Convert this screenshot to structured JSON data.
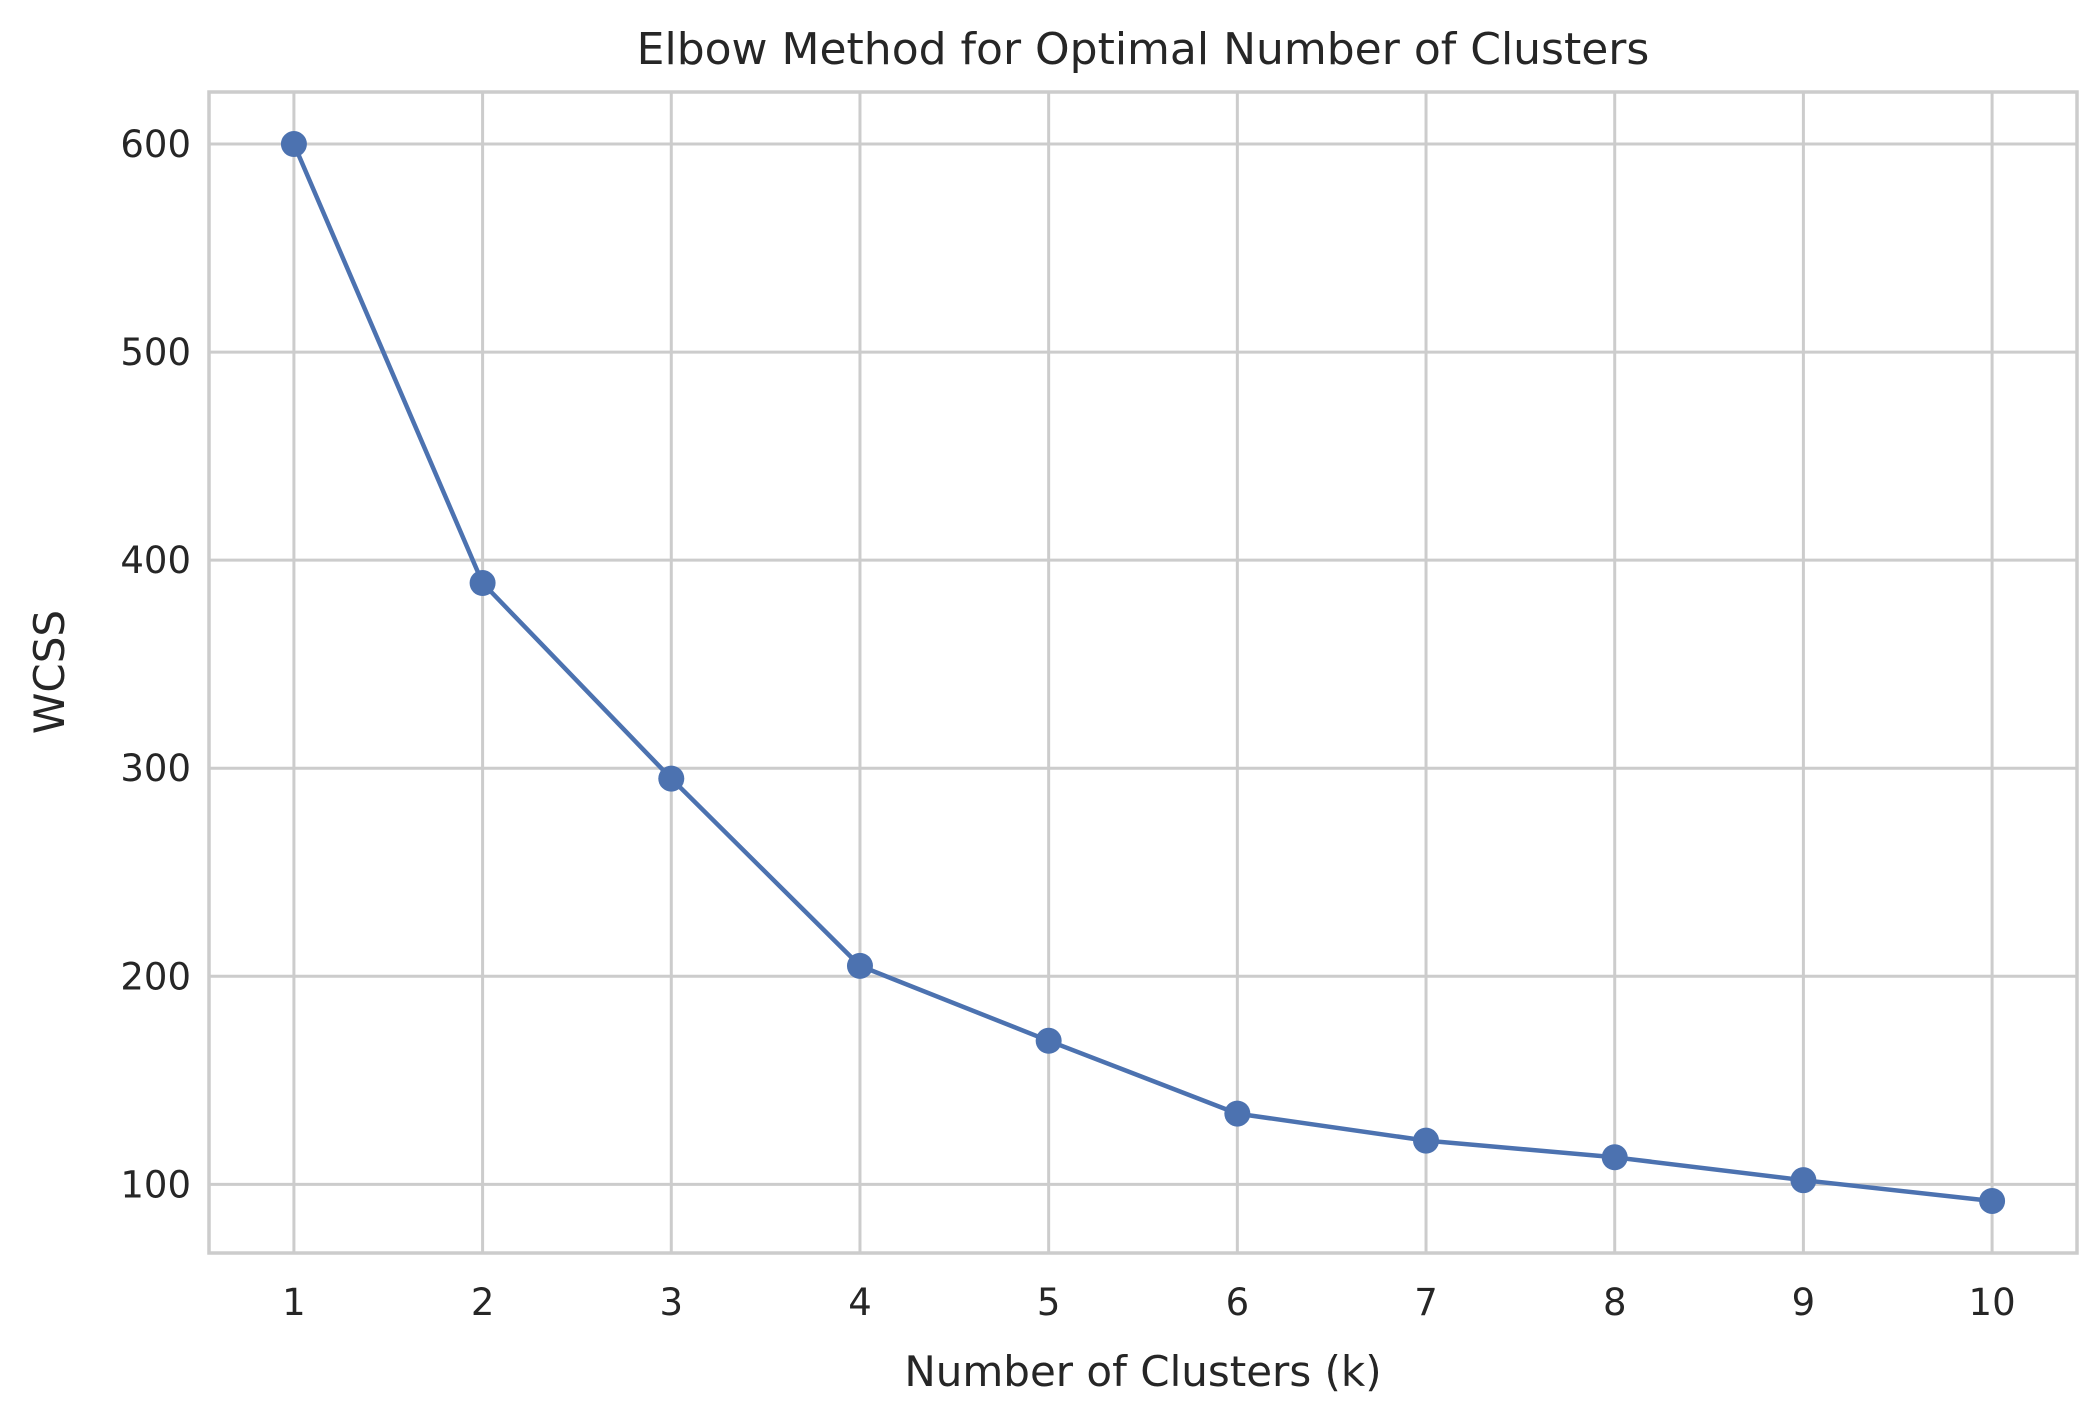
{
  "chart_data": {
    "type": "line",
    "title": "Elbow Method for Optimal Number of Clusters",
    "xlabel": "Number of Clusters (k)",
    "ylabel": "WCSS",
    "x": [
      1,
      2,
      3,
      4,
      5,
      6,
      7,
      8,
      9,
      10
    ],
    "series": [
      {
        "values": [
          600,
          389,
          295,
          205,
          169,
          134,
          121,
          113,
          102,
          92
        ]
      }
    ],
    "xticks": [
      "1",
      "2",
      "3",
      "4",
      "5",
      "6",
      "7",
      "8",
      "9",
      "10"
    ],
    "yticks": [
      "100",
      "200",
      "300",
      "400",
      "500",
      "600"
    ],
    "xlim": [
      0.55,
      10.45
    ],
    "ylim": [
      67,
      625
    ],
    "grid": true,
    "marker": "circle",
    "colors": {
      "line": "#4c72b0",
      "grid": "#cccccc",
      "text": "#262626"
    }
  }
}
